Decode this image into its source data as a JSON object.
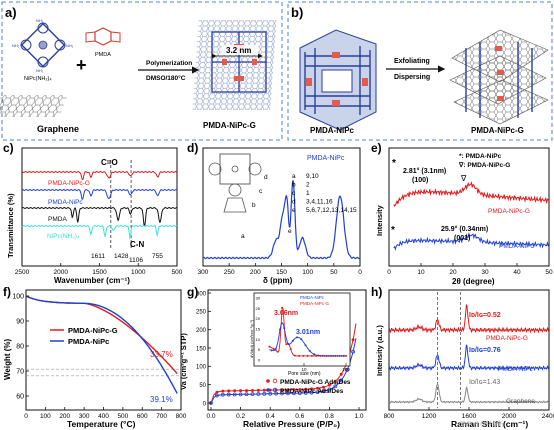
{
  "colors": {
    "red": "#e41a1c",
    "blue": "#1f3fd6",
    "black": "#111111",
    "cyan": "#39e3e8",
    "gray": "#888888",
    "orange": "#f7a21b",
    "dash": "#4a84c8"
  },
  "panel_a": {
    "letter": "a)",
    "monomer1": "NiPc(NH₂)₄",
    "monomer2": "PMDA",
    "substrate": "Graphene",
    "arrow_top": "Polymerization",
    "arrow_bottom": "DMSO/180°C",
    "size_label": "3.2 nm",
    "product": "PMDA-NiPc-G",
    "plus": "+",
    "nh2": "NH₂"
  },
  "panel_b": {
    "letter": "b)",
    "left_label": "PMDA-NiPc",
    "arrow_top": "Exfoliating",
    "arrow_bottom": "Dispersing",
    "right_label": "PMDA-NiPc-G"
  },
  "panel_c": {
    "letter": "c)",
    "ylabel": "Transmittance (%)",
    "xlabel": "Wavenumber (cm⁻¹)",
    "co_label": "C=O",
    "cn_label": "C-N",
    "peaks": [
      "1611",
      "1428",
      "1106",
      "755"
    ],
    "series_labels": [
      "PMDA-NiPc-G",
      "PMDA-NiPc",
      "PMDA",
      "NiPc(NH₂)₄"
    ]
  },
  "panel_d": {
    "letter": "d)",
    "xlabel": "δ (ppm)",
    "legend": "PMDA-NiPc",
    "assignments": [
      {
        "k": "a",
        "v": "9,10"
      },
      {
        "k": "b",
        "v": "2"
      },
      {
        "k": "c",
        "v": "1"
      },
      {
        "k": "d",
        "v": "3,4,11,16"
      },
      {
        "k": "e",
        "v": "5,6,7,12,13,14,15"
      }
    ],
    "peak_letters": [
      "a",
      "b",
      "c",
      "d",
      "e"
    ]
  },
  "panel_e": {
    "letter": "e)",
    "ylabel": "Intensity",
    "xlabel": "2θ (degree)",
    "legend_star": "*: PMDA-NiPc",
    "legend_tri": "∇: PMDA-NiPc-G",
    "peak1_angle": "2.81° (3.1nm)",
    "peak1_hkl": "(100)",
    "peak2_angle": "25.9° (0.34nm)",
    "peak2_hkl": "(001)",
    "label_red": "PMDA-NiPc-G",
    "label_blue": "PMDA-NiPc",
    "star": "*",
    "tri": "∇"
  },
  "panel_f": {
    "letter": "f)",
    "ylabel": "Weight (%)",
    "xlabel": "Temperature (°C)",
    "legend": [
      "PMDA-NiPc-G",
      "PMDA-NiPc"
    ],
    "end_red": "33.7%",
    "end_blue": "39.1%"
  },
  "panel_g": {
    "letter": "g)",
    "ylabel": "Va (cm³g⁻¹ STP)",
    "xlabel": "Relative Pressure (P/P₀)",
    "legend": [
      "PMDA-NiPc-G Ads/Des",
      "PMDA-NiPc Ads/Des"
    ],
    "inset_legend": [
      "PMDA-NiPc",
      "PMDA-NiPc-G"
    ],
    "inset_ylabel": "dV/d(d) (cm³nm⁻¹g⁻¹)",
    "inset_xlabel": "Pore size (nm)",
    "inset_red_label": "3.06nm",
    "inset_blue_label": "3.01nm"
  },
  "panel_h": {
    "letter": "h)",
    "ylabel": "Intensity (a.u.)",
    "xlabel": "Raman Shift (cm⁻¹)",
    "ratio_red": "I",
    "ratio_texts": [
      "Iᴅ/Iɢ=0.52",
      "Iᴅ/Iɢ=0.76",
      "Iᴅ/Iɢ=1.43"
    ],
    "labels": [
      "PMDA-NiPc-G",
      "PMDA-NiPc",
      "Graphene"
    ],
    "watermark": "知乎 @材料分析"
  },
  "ticks": {
    "c_x": [
      "2500",
      "2000",
      "1500",
      "1000",
      "500"
    ],
    "d_x": [
      "300",
      "250",
      "200",
      "150",
      "100",
      "50",
      "0"
    ],
    "e_x": [
      "0",
      "10",
      "20",
      "30",
      "40",
      "50"
    ],
    "f_x": [
      "0",
      "100",
      "200",
      "300",
      "400",
      "500",
      "600",
      "700",
      "800"
    ],
    "f_y": [
      "100",
      "90",
      "80",
      "70",
      "60"
    ],
    "g_x": [
      "0.0",
      "0.2",
      "0.4",
      "0.6",
      "0.8",
      "1.0"
    ],
    "g_y": [
      "0",
      "50",
      "100",
      "150",
      "200",
      "250",
      "300"
    ],
    "inset_x": [
      "10",
      "100"
    ],
    "inset_y": [
      "0",
      "5",
      "10",
      "15",
      "20",
      "25",
      "30"
    ],
    "h_x": [
      "800",
      "1200",
      "1600",
      "2000",
      "2400"
    ]
  }
}
